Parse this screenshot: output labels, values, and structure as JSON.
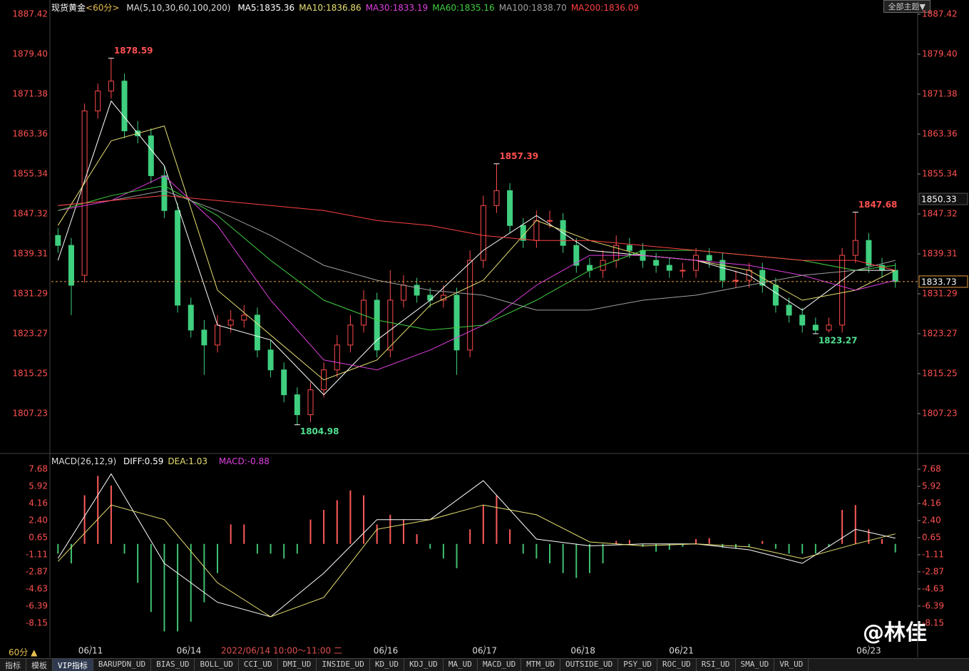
{
  "ui": {
    "period_button": "60分 ▲",
    "theme": "全部主题▼",
    "watermark": "@林佳",
    "tabs": [
      "指标",
      "模板",
      "VIP指标",
      "BARUPDN_UD",
      "BIAS_UD",
      "BOLL_UD",
      "CCI_UD",
      "DMI_UD",
      "INSIDE_UD",
      "KD_UD",
      "KDJ_UD",
      "MA_UD",
      "MACD_UD",
      "MTM_UD",
      "OUTSIDE_UD",
      "PSY_UD",
      "ROC_UD",
      "RSI_UD",
      "SMA_UD",
      "VR_UD"
    ]
  },
  "chart_data": [
    {
      "type": "candlestick",
      "title": "现货黄金",
      "period": "<60分>",
      "indicator": "MA(5,10,30,60,100,200)",
      "up_color": "#ff4a4a",
      "down_color": "#3fcf7f",
      "xlim": [
        -0.5,
        63.5
      ],
      "ylim": [
        1799.35,
        1889.57
      ],
      "yticks": [
        1887.42,
        {
          "value": 1879.4,
          "label": "1879.40"
        },
        1871.38,
        1863.36,
        1855.34,
        1847.32,
        1839.31,
        1831.29,
        1823.27,
        1815.25,
        1807.23
      ],
      "open": [
        1843,
        1841,
        1835,
        1868,
        1872,
        1874,
        1864,
        1863,
        1855,
        1848,
        1829,
        1824,
        1821,
        1825,
        1826,
        1827,
        1820,
        1816,
        1811,
        1807,
        1812,
        1816,
        1821,
        1825,
        1830,
        1820,
        1830,
        1833,
        1831,
        1830,
        1831,
        1820,
        1838,
        1849,
        1852,
        1845,
        1842,
        1846,
        1846,
        1841,
        1837,
        1836,
        1838,
        1841,
        1840,
        1838,
        1837,
        1836,
        1836,
        1839,
        1838,
        1834,
        1834,
        1836,
        1833,
        1829,
        1827,
        1825,
        1824,
        1825,
        1839,
        1842,
        1837,
        1836
      ],
      "high": [
        1844.5,
        1842.5,
        1869.5,
        1873.5,
        1878.59,
        1875.5,
        1866,
        1864.5,
        1857,
        1849.5,
        1830.5,
        1826,
        1827,
        1828,
        1829,
        1828.5,
        1822,
        1817.5,
        1812.5,
        1813.5,
        1817.5,
        1823,
        1827,
        1832,
        1831.5,
        1836,
        1835,
        1834.5,
        1832.5,
        1833,
        1832.5,
        1840,
        1851,
        1857.39,
        1853.5,
        1846.5,
        1848,
        1848,
        1847.5,
        1842.5,
        1838.5,
        1840,
        1843,
        1842.5,
        1841.5,
        1839.5,
        1838.5,
        1837.5,
        1840.5,
        1840.5,
        1839.5,
        1836,
        1837.5,
        1837.5,
        1834.5,
        1830.5,
        1828.5,
        1826.5,
        1826.5,
        1840.5,
        1847.68,
        1843.5,
        1838.5,
        1837.5
      ],
      "low": [
        1839.5,
        1827,
        1833.5,
        1866.5,
        1870.5,
        1862.5,
        1861.5,
        1853.5,
        1846.5,
        1827.5,
        1822.5,
        1815,
        1819.5,
        1823.5,
        1824.5,
        1818.5,
        1814.5,
        1809.5,
        1804.98,
        1805.5,
        1810.5,
        1814.5,
        1819.5,
        1823.5,
        1818.5,
        1818.5,
        1828.5,
        1829.5,
        1828.5,
        1828.5,
        1815,
        1818.5,
        1836.5,
        1847.5,
        1843.5,
        1840.5,
        1840.5,
        1844.5,
        1839.5,
        1835.5,
        1834.5,
        1834.5,
        1836.5,
        1838.5,
        1836.5,
        1835.5,
        1834.5,
        1834.5,
        1834.5,
        1836.5,
        1832.5,
        1832.5,
        1832.5,
        1831.5,
        1827.5,
        1825.5,
        1823.5,
        1823.27,
        1823.5,
        1823.5,
        1837.5,
        1835.5,
        1834.5,
        1832.5
      ],
      "close": [
        1841,
        1833,
        1868,
        1872,
        1874,
        1864,
        1863,
        1855,
        1848,
        1829,
        1824,
        1821,
        1825,
        1826,
        1827,
        1820,
        1816,
        1811,
        1807,
        1812,
        1816,
        1821,
        1825,
        1830,
        1820,
        1830,
        1833,
        1831,
        1830,
        1831,
        1820,
        1838,
        1849,
        1852,
        1845,
        1842,
        1846,
        1846,
        1841,
        1837,
        1836,
        1838,
        1841,
        1840,
        1838,
        1837,
        1836,
        1836,
        1839,
        1838,
        1834,
        1834,
        1836,
        1833,
        1829,
        1827,
        1825,
        1824,
        1825,
        1839,
        1842,
        1837,
        1836,
        1833.73
      ],
      "series": [
        {
          "name": "MA5:1835.36",
          "color": "#ffffff",
          "x": [
            0,
            4,
            8,
            12,
            16,
            20,
            24,
            28,
            32,
            36,
            40,
            44,
            48,
            52,
            56,
            60,
            63
          ],
          "values": [
            1838,
            1870,
            1857,
            1825,
            1822,
            1811,
            1822,
            1830,
            1840,
            1847,
            1840,
            1839,
            1838,
            1835,
            1828,
            1836,
            1836
          ]
        },
        {
          "name": "MA10:1836.86",
          "color": "#e8e070",
          "x": [
            0,
            4,
            8,
            12,
            16,
            20,
            24,
            28,
            32,
            36,
            40,
            44,
            48,
            52,
            56,
            60,
            63
          ],
          "values": [
            1845,
            1862,
            1865,
            1832,
            1823,
            1814,
            1818,
            1829,
            1834,
            1846,
            1842,
            1839,
            1838,
            1836,
            1830,
            1832,
            1836
          ]
        },
        {
          "name": "MA30:1833.19",
          "color": "#e040e0",
          "x": [
            0,
            4,
            8,
            12,
            16,
            20,
            24,
            28,
            32,
            36,
            40,
            44,
            48,
            52,
            56,
            60,
            63
          ],
          "values": [
            1848,
            1850,
            1855,
            1845,
            1830,
            1818,
            1816,
            1820,
            1825,
            1833,
            1839,
            1839,
            1838,
            1837,
            1835,
            1832,
            1834
          ]
        },
        {
          "name": "MA60:1835.16",
          "color": "#40d040",
          "x": [
            0,
            4,
            8,
            12,
            16,
            20,
            24,
            28,
            32,
            36,
            40,
            44,
            48,
            52,
            56,
            60,
            63
          ],
          "values": [
            1848,
            1851,
            1853,
            1847,
            1838,
            1830,
            1826,
            1824,
            1825,
            1830,
            1836,
            1840,
            1840,
            1839,
            1838,
            1836,
            1837
          ]
        },
        {
          "name": "MA100:1838.70",
          "color": "#a0a0a0",
          "x": [
            0,
            4,
            8,
            12,
            16,
            20,
            24,
            28,
            32,
            36,
            40,
            44,
            48,
            52,
            56,
            60,
            63
          ],
          "values": [
            1849,
            1850,
            1852,
            1848,
            1843,
            1837,
            1834,
            1832,
            1831,
            1828,
            1828,
            1830,
            1831,
            1833,
            1835,
            1836,
            1838
          ]
        },
        {
          "name": "MA200:1836.09",
          "color": "#ff4040",
          "x": [
            0,
            4,
            8,
            12,
            16,
            20,
            24,
            28,
            32,
            36,
            40,
            44,
            48,
            52,
            56,
            60,
            63
          ],
          "values": [
            1849,
            1850,
            1851,
            1850,
            1849,
            1848,
            1846,
            1845,
            1843,
            1842,
            1842,
            1841,
            1840,
            1839,
            1838,
            1838,
            1836
          ]
        }
      ],
      "annotations": [
        {
          "x": 4,
          "y": 1878.59,
          "color": "#ff5050"
        },
        {
          "x": 18,
          "y": 1804.98,
          "color": "#50e090"
        },
        {
          "x": 33,
          "y": 1857.39,
          "color": "#ff5050"
        },
        {
          "x": 57,
          "y": 1823.27,
          "color": "#50e090"
        },
        {
          "x": 60,
          "y": 1847.68,
          "color": "#ff5050"
        }
      ],
      "last_price": 1833.73,
      "marker_price": 1850.33
    },
    {
      "type": "macd",
      "indicator": "MACD(26,12,9)",
      "histogram_name": "MACD:-0.88",
      "xlim": [
        -0.5,
        63.5
      ],
      "ylim": [
        -10.43,
        8.27
      ],
      "yticks": [
        7.68,
        5.92,
        4.16,
        {
          "value": 2.4,
          "label": "2.40"
        },
        0.65,
        -1.11,
        -2.87,
        -4.63,
        -6.39,
        -8.15
      ],
      "histogram": [
        -1,
        -2,
        5,
        7,
        6,
        -1,
        -4,
        -7,
        -9,
        -9,
        -8,
        -6,
        -3,
        2,
        2,
        -1,
        -1,
        -1.5,
        -1,
        2.5,
        3.5,
        4.5,
        5.5,
        5,
        2,
        3,
        2.5,
        1,
        -0.5,
        -1.5,
        -2.5,
        1.5,
        4,
        5,
        1.5,
        -1,
        -1.5,
        -2,
        -3,
        -3.5,
        -3,
        -2,
        0.3,
        0.4,
        -0.3,
        -0.8,
        -0.6,
        -0.3,
        0.5,
        0.6,
        -0.4,
        -0.5,
        -0.3,
        0.3,
        -0.5,
        -1,
        -1,
        -1,
        -0.3,
        3.5,
        4,
        1.5,
        0.5,
        -0.88
      ],
      "series": [
        {
          "name": "DIFF:0.59",
          "color": "#ffffff",
          "x": [
            0,
            4,
            8,
            12,
            16,
            20,
            24,
            28,
            32,
            36,
            40,
            44,
            48,
            52,
            56,
            60,
            63
          ],
          "values": [
            -1.5,
            7.2,
            -2,
            -6,
            -7.5,
            -3,
            2.5,
            2.5,
            6.5,
            0.5,
            -0.2,
            0,
            0,
            -0.6,
            -2,
            1.5,
            0.59
          ]
        },
        {
          "name": "DEA:1.03",
          "color": "#e8e070",
          "x": [
            0,
            4,
            8,
            12,
            16,
            20,
            24,
            28,
            32,
            36,
            40,
            44,
            48,
            52,
            56,
            60,
            63
          ],
          "values": [
            -1.8,
            4,
            2.5,
            -4,
            -7.5,
            -5.5,
            1.5,
            2.5,
            4,
            3,
            0.2,
            -0.2,
            0,
            -0.3,
            -1.5,
            0,
            1.03
          ]
        }
      ],
      "histogram_color": "#e040e0",
      "xticks": [
        {
          "value": 2.45,
          "label": "06/11"
        },
        {
          "value": 9.85,
          "label": "06/14"
        },
        {
          "value": 24.66,
          "label": "06/16"
        },
        {
          "value": 32.1,
          "label": "06/17"
        },
        {
          "value": 39.5,
          "label": "06/18"
        },
        {
          "value": 46.9,
          "label": "06/21"
        },
        {
          "value": 61,
          "label": "06/23"
        }
      ],
      "crosshair_label": "2022/06/14 10:00～11:00 二"
    }
  ]
}
